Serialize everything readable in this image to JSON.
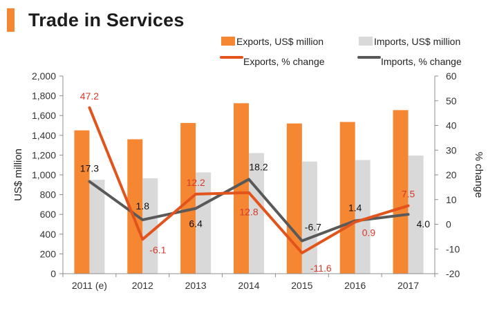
{
  "title": "Trade in Services",
  "colors": {
    "accent": "#f58733",
    "exports_bar": "#f58733",
    "imports_bar": "#d9d9d9",
    "exports_line": "#e3531c",
    "imports_line": "#595959",
    "exports_label": "#d6392a",
    "imports_label": "#111111"
  },
  "chart_data": {
    "type": "bar",
    "title": "Trade in Services",
    "categories": [
      "2011 (e)",
      "2012",
      "2013",
      "2014",
      "2015",
      "2016",
      "2017"
    ],
    "series": [
      {
        "name": "Exports, US$ million",
        "type": "bar",
        "axis": "left",
        "values": [
          1450,
          1360,
          1525,
          1725,
          1520,
          1535,
          1655
        ]
      },
      {
        "name": "Imports, US$ million",
        "type": "bar",
        "axis": "left",
        "values": [
          950,
          965,
          1025,
          1220,
          1135,
          1150,
          1195
        ]
      },
      {
        "name": "Exports, % change",
        "type": "line",
        "axis": "right",
        "values": [
          47.2,
          -6.1,
          12.2,
          12.8,
          -11.6,
          0.9,
          7.5
        ],
        "labels": [
          "47.2",
          "-6.1",
          "12.2",
          "12.8",
          "-11.6",
          "0.9",
          "7.5"
        ]
      },
      {
        "name": "Imports, % change",
        "type": "line",
        "axis": "right",
        "values": [
          17.3,
          1.8,
          6.4,
          18.2,
          -6.7,
          1.4,
          4.0
        ],
        "labels": [
          "17.3",
          "1.8",
          "6.4",
          "18.2",
          "-6.7",
          "1.4",
          "4.0"
        ]
      }
    ],
    "ylabel": "US$ million",
    "y2label": "% change",
    "ylim": [
      0,
      2000
    ],
    "y2lim": [
      -20,
      60
    ],
    "yticks": [
      0,
      200,
      400,
      600,
      800,
      1000,
      1200,
      1400,
      1600,
      1800,
      2000
    ],
    "ytick_labels": [
      "0",
      "200",
      "400",
      "600",
      "800",
      "1,000",
      "1,200",
      "1,400",
      "1,600",
      "1,800",
      "2,000"
    ],
    "y2ticks": [
      -20,
      -10,
      0,
      10,
      20,
      30,
      40,
      50,
      60
    ],
    "y2tick_labels": [
      "-20",
      "-10",
      "0",
      "10",
      "20",
      "30",
      "40",
      "50",
      "60"
    ],
    "grid": false,
    "legend_position": "top-right"
  }
}
